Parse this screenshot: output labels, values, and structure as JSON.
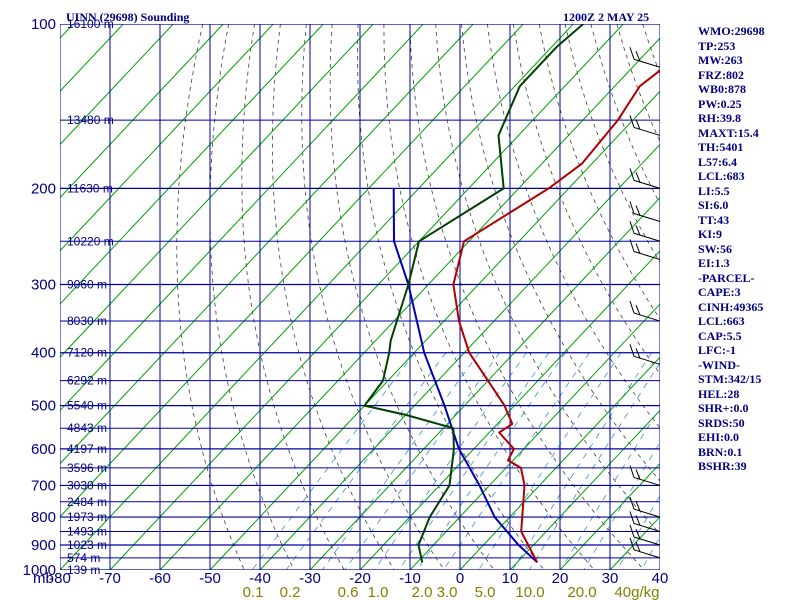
{
  "title_left": "UINN (29698) Sounding",
  "title_right": "1200Z  2 MAY 25",
  "pressure_axis_label": "mb",
  "indices": [
    "WMO:29698",
    "TP:253",
    "MW:263",
    "FRZ:802",
    "WB0:878",
    "PW:0.25",
    "RH:39.8",
    "MAXT:15.4",
    "TH:5401",
    "L57:6.4",
    "LCL:683",
    "LI:5.5",
    "SI:6.0",
    "TT:43",
    "KI:9",
    "SW:56",
    "EI:1.3",
    "-PARCEL-",
    "CAPE:3",
    "CINH:49365",
    "LCL:663",
    "CAP:5.5",
    "LFC:-1",
    "-WIND-",
    "STM:342/15",
    "HEL:28",
    "SHR+:0.0",
    "SRDS:50",
    "EHI:0.0",
    "BRN:0.1",
    "BSHR:39"
  ],
  "colors": {
    "grid": "#0000a0",
    "isotherm": "#00a000",
    "dry_adiabat": "#404040",
    "mixing_ratio": "#4090d0",
    "temperature": "#b00000",
    "dewpoint": "#004000",
    "parcel": "#0000b0",
    "text": "#000080",
    "mixing_label": "#808000"
  },
  "chart_data": {
    "type": "skew-t",
    "pressure_ticks": [
      100,
      200,
      300,
      400,
      500,
      600,
      700,
      800,
      900,
      1000
    ],
    "temperature_ticks": [
      "-80",
      "-70",
      "-60",
      "-50",
      "-40",
      "-30",
      "-20",
      "-10",
      "0",
      "10",
      "20",
      "30",
      "40"
    ],
    "height_labels": [
      {
        "p": 100,
        "label": "16100 m"
      },
      {
        "p": 150,
        "label": "13480 m"
      },
      {
        "p": 200,
        "label": "11630 m"
      },
      {
        "p": 250,
        "label": "10220 m"
      },
      {
        "p": 300,
        "label": "9060 m"
      },
      {
        "p": 350,
        "label": "8030 m"
      },
      {
        "p": 400,
        "label": "7120 m"
      },
      {
        "p": 450,
        "label": "6292 m"
      },
      {
        "p": 500,
        "label": "5540 m"
      },
      {
        "p": 550,
        "label": "4843 m"
      },
      {
        "p": 600,
        "label": "4197 m"
      },
      {
        "p": 650,
        "label": "3596 m"
      },
      {
        "p": 700,
        "label": "3030 m"
      },
      {
        "p": 750,
        "label": "2484 m"
      },
      {
        "p": 800,
        "label": "1973 m"
      },
      {
        "p": 850,
        "label": "1493 m"
      },
      {
        "p": 900,
        "label": "1023 m"
      },
      {
        "p": 950,
        "label": "574 m"
      },
      {
        "p": 1000,
        "label": "139 m"
      }
    ],
    "mixing_ratio_labels": [
      "0.1",
      "0.2",
      "0.6",
      "1.0",
      "2.0",
      "3.0",
      "5.0",
      "10.0",
      "20.0",
      "40g/kg"
    ],
    "temperature_profile": [
      [
        968,
        14
      ],
      [
        850,
        5
      ],
      [
        700,
        -3
      ],
      [
        650,
        -7
      ],
      [
        630,
        -11
      ],
      [
        600,
        -12
      ],
      [
        560,
        -18
      ],
      [
        540,
        -17
      ],
      [
        500,
        -22
      ],
      [
        450,
        -30
      ],
      [
        400,
        -39
      ],
      [
        350,
        -47
      ],
      [
        300,
        -55
      ],
      [
        250,
        -61
      ],
      [
        220,
        -57
      ],
      [
        200,
        -54
      ],
      [
        180,
        -52
      ],
      [
        150,
        -53
      ],
      [
        130,
        -55
      ],
      [
        115,
        -53
      ],
      [
        105,
        -50
      ],
      [
        100,
        -51
      ]
    ],
    "dewpoint_profile": [
      [
        968,
        -9
      ],
      [
        900,
        -13
      ],
      [
        800,
        -16
      ],
      [
        700,
        -18
      ],
      [
        600,
        -24
      ],
      [
        550,
        -28
      ],
      [
        520,
        -40
      ],
      [
        500,
        -50
      ],
      [
        450,
        -51
      ],
      [
        400,
        -55
      ],
      [
        380,
        -57
      ],
      [
        300,
        -64
      ],
      [
        250,
        -70
      ],
      [
        220,
        -66
      ],
      [
        200,
        -63
      ],
      [
        160,
        -74
      ],
      [
        130,
        -79
      ],
      [
        110,
        -79
      ],
      [
        100,
        -78
      ]
    ],
    "parcel_profile": [
      [
        968,
        14
      ],
      [
        900,
        7
      ],
      [
        800,
        -3
      ],
      [
        700,
        -12
      ],
      [
        600,
        -23
      ],
      [
        500,
        -34
      ],
      [
        400,
        -48
      ],
      [
        300,
        -64
      ],
      [
        250,
        -75
      ],
      [
        200,
        -85
      ]
    ],
    "wind_barb_pressures": [
      120,
      160,
      200,
      230,
      250,
      270,
      350,
      420,
      700,
      800,
      850,
      900,
      950
    ]
  }
}
